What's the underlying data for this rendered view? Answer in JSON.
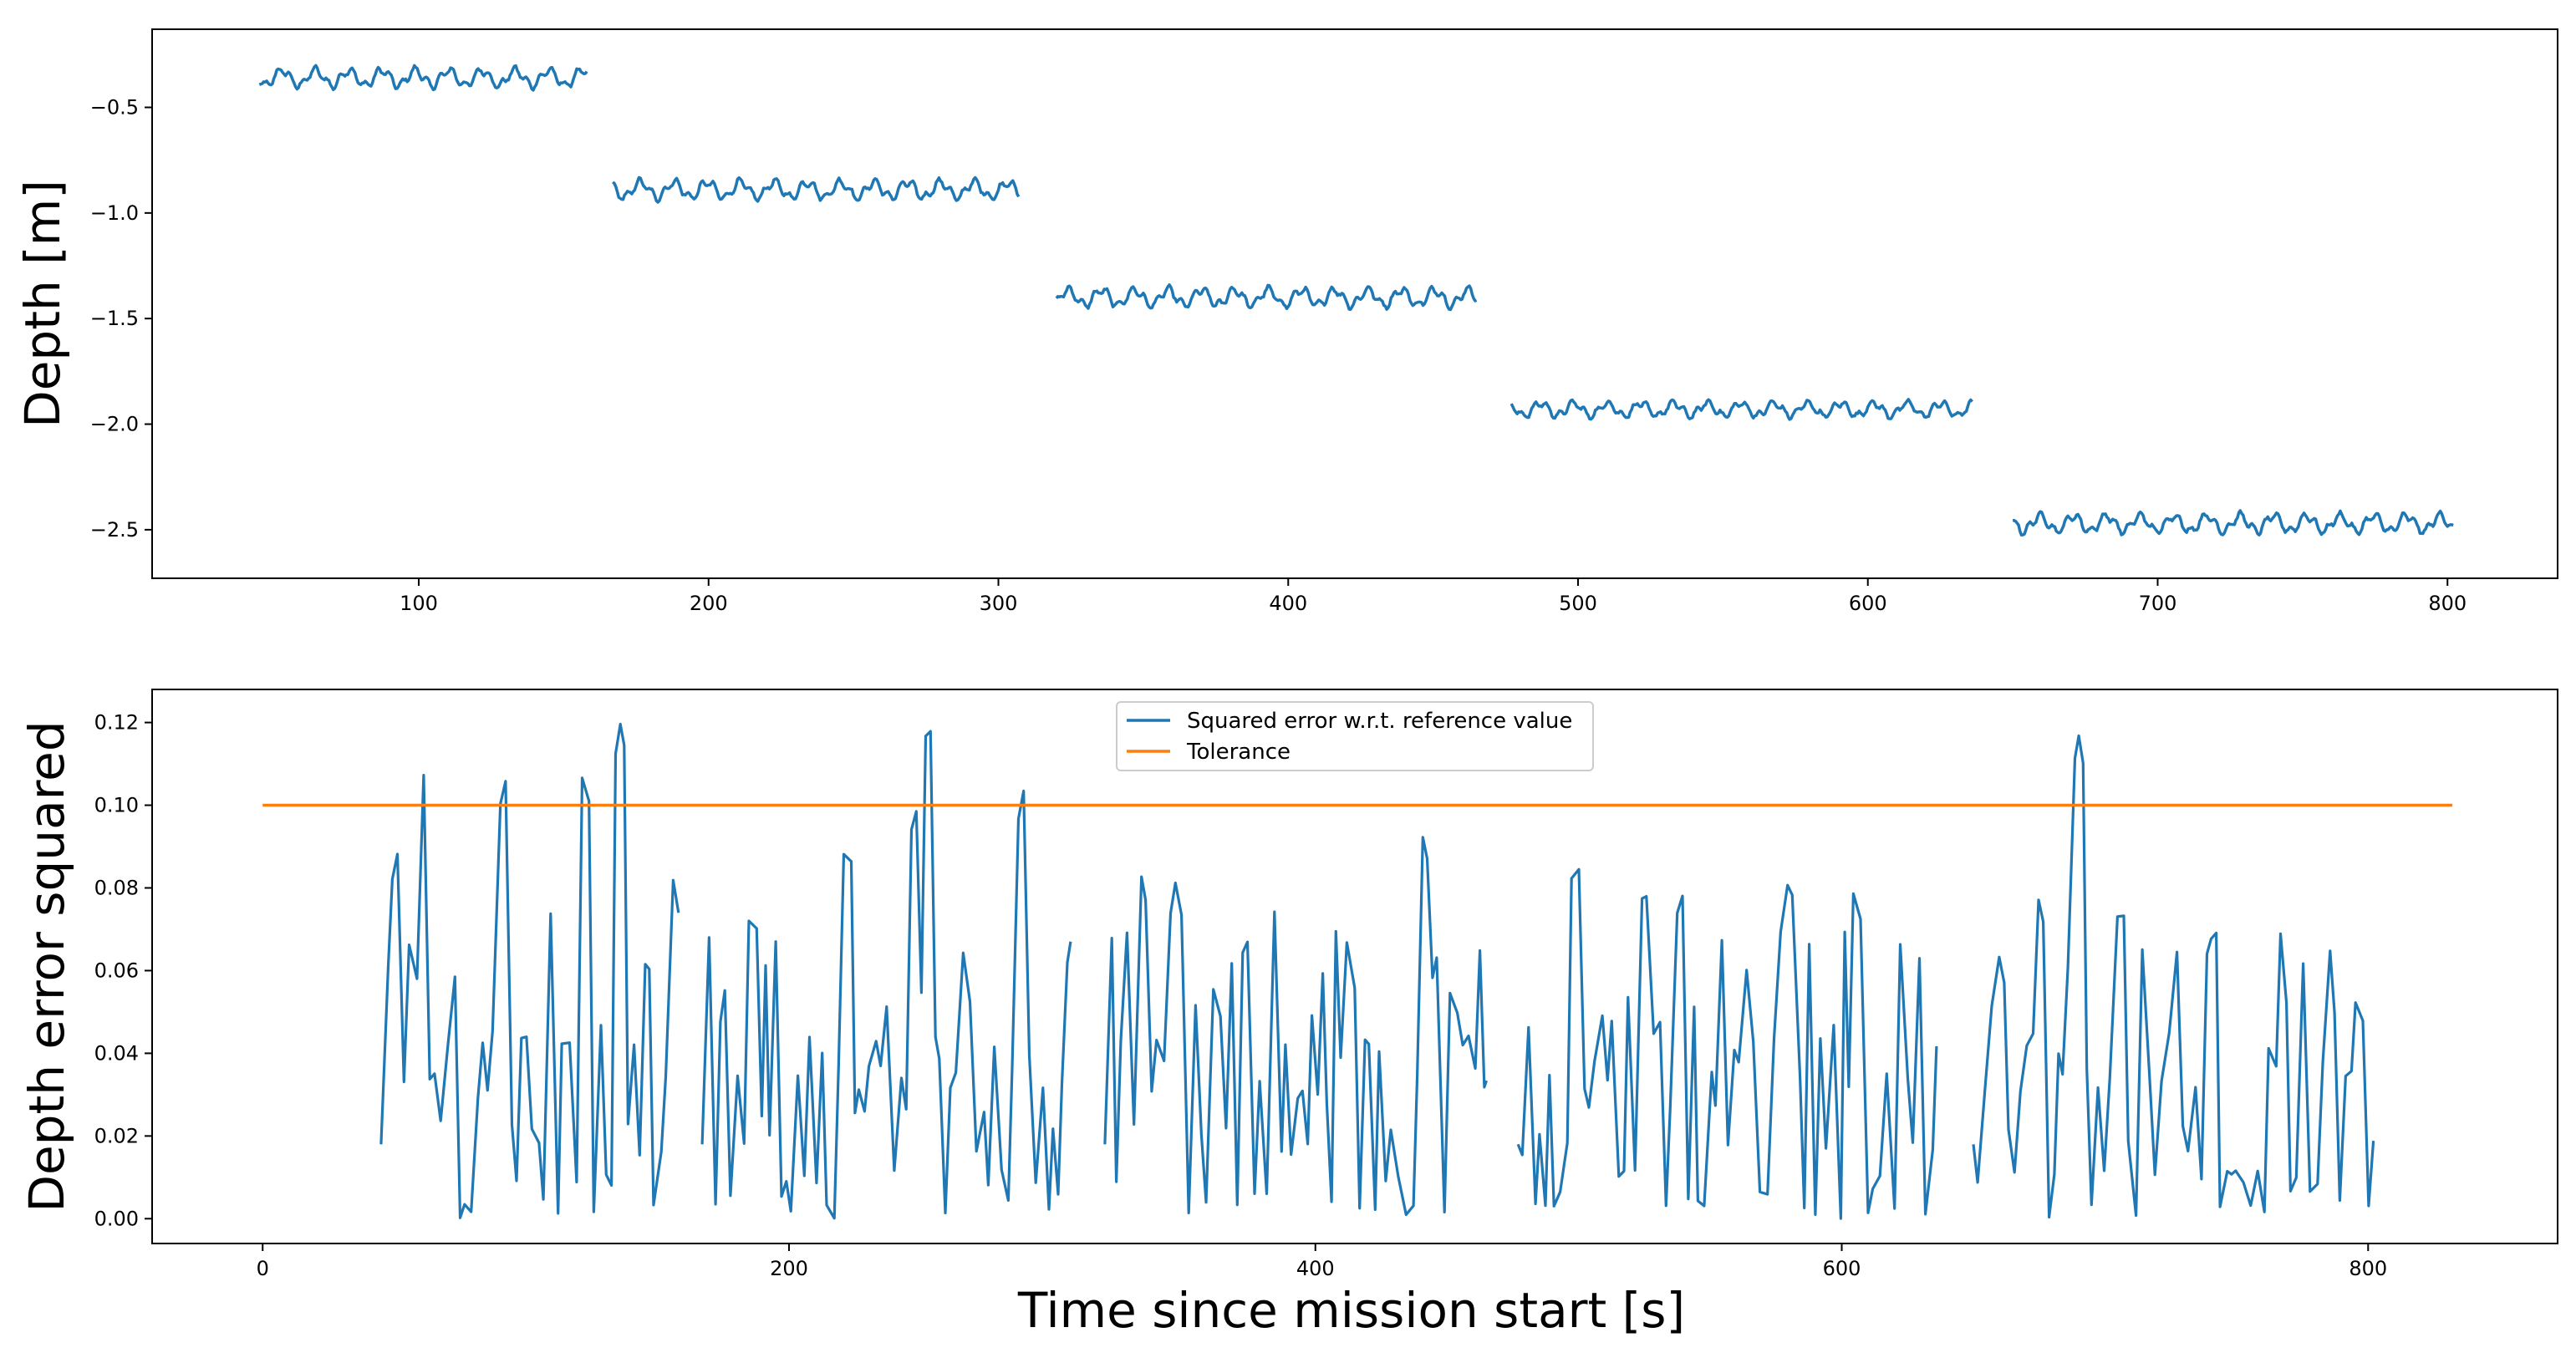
{
  "figure": {
    "xlabel": "Time since mission start [s]"
  },
  "chart_data": [
    {
      "type": "line",
      "title": "",
      "xlabel": "",
      "ylabel": "Depth [m]",
      "xlim": [
        8,
        838
      ],
      "ylim": [
        -2.73,
        -0.13
      ],
      "xticks": [
        100,
        200,
        300,
        400,
        500,
        600,
        700,
        800
      ],
      "yticks": [
        -0.5,
        -1.0,
        -1.5,
        -2.0,
        -2.5
      ],
      "xtick_labels": [
        "100",
        "200",
        "300",
        "400",
        "500",
        "600",
        "700",
        "800"
      ],
      "ytick_labels": [
        "−0.5",
        "−1.0",
        "−1.5",
        "−2.0",
        "−2.5"
      ],
      "legend": null,
      "series": [
        {
          "name": "Depth",
          "color": "#1f77b4",
          "segments": [
            {
              "x_start": 45,
              "x_end": 158,
              "mean": -0.36,
              "amplitude": 0.055
            },
            {
              "x_start": 167,
              "x_end": 307,
              "mean": -0.89,
              "amplitude": 0.055
            },
            {
              "x_start": 320,
              "x_end": 465,
              "mean": -1.4,
              "amplitude": 0.055
            },
            {
              "x_start": 477,
              "x_end": 636,
              "mean": -1.93,
              "amplitude": 0.045
            },
            {
              "x_start": 650,
              "x_end": 802,
              "mean": -2.47,
              "amplitude": 0.055
            }
          ]
        }
      ]
    },
    {
      "type": "line",
      "title": "",
      "xlabel": "Time since mission start [s]",
      "ylabel": "Depth error squared",
      "xlim": [
        -42,
        872
      ],
      "ylim": [
        -0.006,
        0.128
      ],
      "xticks": [
        0,
        200,
        400,
        600,
        800
      ],
      "yticks": [
        0.0,
        0.02,
        0.04,
        0.06,
        0.08,
        0.1,
        0.12
      ],
      "xtick_labels": [
        "0",
        "200",
        "400",
        "600",
        "800"
      ],
      "ytick_labels": [
        "0.00",
        "0.02",
        "0.04",
        "0.06",
        "0.08",
        "0.10",
        "0.12"
      ],
      "legend": "top-center",
      "series": [
        {
          "name": "Squared error w.r.t. reference value",
          "color": "#1f77b4",
          "segments": [
            {
              "x_start": 45,
              "x_end": 158,
              "mean": 0.04,
              "peak": 0.12
            },
            {
              "x_start": 167,
              "x_end": 307,
              "mean": 0.04,
              "peak": 0.121
            },
            {
              "x_start": 320,
              "x_end": 465,
              "mean": 0.035,
              "peak": 0.093
            },
            {
              "x_start": 477,
              "x_end": 636,
              "mean": 0.035,
              "peak": 0.089
            },
            {
              "x_start": 650,
              "x_end": 802,
              "mean": 0.035,
              "peak": 0.116
            }
          ],
          "peaks": [
            {
              "x": 51,
              "y": 0.089
            },
            {
              "x": 61,
              "y": 0.108
            },
            {
              "x": 92,
              "y": 0.107
            },
            {
              "x": 110,
              "y": 0.076
            },
            {
              "x": 122,
              "y": 0.109
            },
            {
              "x": 136,
              "y": 0.12
            },
            {
              "x": 146,
              "y": 0.064
            },
            {
              "x": 156,
              "y": 0.082
            },
            {
              "x": 186,
              "y": 0.077
            },
            {
              "x": 222,
              "y": 0.093
            },
            {
              "x": 248,
              "y": 0.1
            },
            {
              "x": 253,
              "y": 0.121
            },
            {
              "x": 266,
              "y": 0.065
            },
            {
              "x": 289,
              "y": 0.104
            },
            {
              "x": 307,
              "y": 0.067
            },
            {
              "x": 334,
              "y": 0.083
            },
            {
              "x": 347,
              "y": 0.082
            },
            {
              "x": 384,
              "y": 0.076
            },
            {
              "x": 412,
              "y": 0.067
            },
            {
              "x": 441,
              "y": 0.093
            },
            {
              "x": 454,
              "y": 0.05
            },
            {
              "x": 499,
              "y": 0.089
            },
            {
              "x": 525,
              "y": 0.081
            },
            {
              "x": 539,
              "y": 0.08
            },
            {
              "x": 580,
              "y": 0.083
            },
            {
              "x": 605,
              "y": 0.081
            },
            {
              "x": 660,
              "y": 0.064
            },
            {
              "x": 675,
              "y": 0.078
            },
            {
              "x": 690,
              "y": 0.117
            },
            {
              "x": 706,
              "y": 0.078
            },
            {
              "x": 740,
              "y": 0.069
            },
            {
              "x": 785,
              "y": 0.067
            }
          ]
        },
        {
          "name": "Tolerance",
          "color": "#ff7f0e",
          "x": [
            0,
            832
          ],
          "y": [
            0.1,
            0.1
          ]
        }
      ]
    }
  ]
}
